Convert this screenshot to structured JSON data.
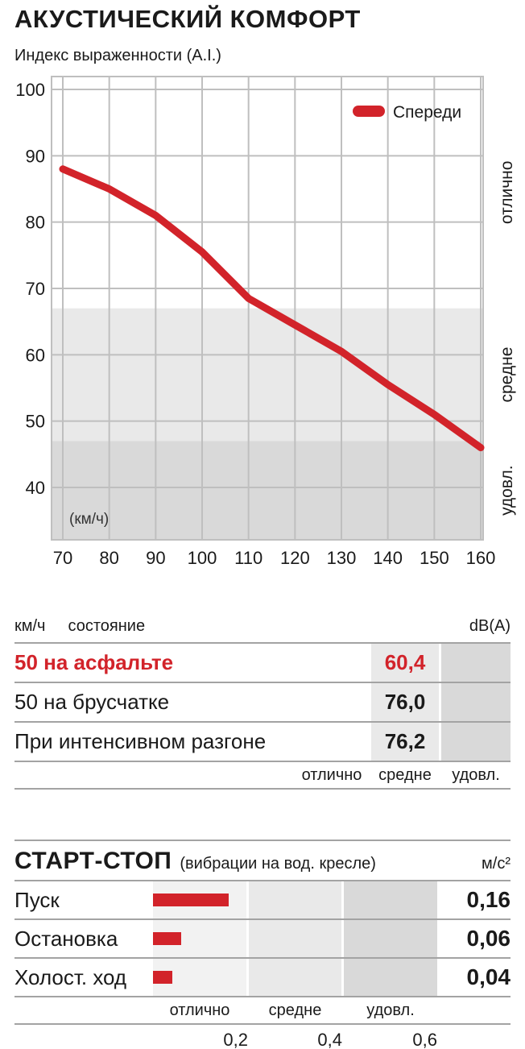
{
  "colors": {
    "accent": "#d2232a",
    "zone_mid": "#e9e9e9",
    "zone_low": "#d9d9d9",
    "zone_top_startstop": "#f2f2f2",
    "grid": "#bfbfbf",
    "rule": "#a3a3a3",
    "text": "#1a1a1a"
  },
  "chart_data": [
    {
      "type": "line",
      "title": "АКУСТИЧЕСКИЙ КОМФОРТ",
      "subtitle": "Индекс выраженности (A.I.)",
      "x_unit_label": "(км/ч)",
      "xlabel": "км/ч",
      "ylabel": "Индекс выраженности (A.I.)",
      "xlim": [
        70,
        160
      ],
      "ylim": [
        40,
        100
      ],
      "xticks": [
        70,
        80,
        90,
        100,
        110,
        120,
        130,
        140,
        150,
        160
      ],
      "yticks": [
        40,
        50,
        60,
        70,
        80,
        90,
        100
      ],
      "grid": true,
      "legend_position": "top-right",
      "series": [
        {
          "name": "Спереди",
          "color": "#d2232a",
          "x": [
            70,
            80,
            90,
            100,
            110,
            120,
            130,
            140,
            150,
            160
          ],
          "values": [
            88,
            85,
            81,
            75.5,
            68.5,
            64.5,
            60.5,
            55.5,
            51,
            46
          ]
        }
      ],
      "zones": [
        {
          "label": "отлично",
          "from": 67,
          "to": 102,
          "color": "#ffffff"
        },
        {
          "label": "средне",
          "from": 47,
          "to": 67,
          "color": "#e9e9e9"
        },
        {
          "label": "удовл.",
          "from": 31,
          "to": 47,
          "color": "#d9d9d9"
        }
      ]
    },
    {
      "type": "table",
      "header": {
        "speed_unit": "км/ч",
        "state": "состояние",
        "value_unit": "dB(A)"
      },
      "rating_labels": [
        "отлично",
        "средне",
        "удовл."
      ],
      "rows": [
        {
          "label": "50 на асфальте",
          "value": "60,4",
          "rating": "средне",
          "highlight": true
        },
        {
          "label": "50 на брусчатке",
          "value": "76,0",
          "rating": "средне",
          "highlight": false
        },
        {
          "label": "При интенсивном разгоне",
          "value": "76,2",
          "rating": "средне",
          "highlight": false
        }
      ]
    },
    {
      "type": "bar",
      "title": "СТАРТ-СТОП",
      "subtitle": "(вибрации на вод. кресле)",
      "unit": "м/с²",
      "categories": [
        "Пуск",
        "Остановка",
        "Холост. ход"
      ],
      "values": [
        0.16,
        0.06,
        0.04
      ],
      "value_labels": [
        "0,16",
        "0,06",
        "0,04"
      ],
      "xlim": [
        0,
        0.6
      ],
      "xticks": [
        0.2,
        0.4,
        0.6
      ],
      "xtick_labels": [
        "0,2",
        "0,4",
        "0,6"
      ],
      "rating_labels": [
        "отлично",
        "средне",
        "удовл."
      ]
    }
  ]
}
